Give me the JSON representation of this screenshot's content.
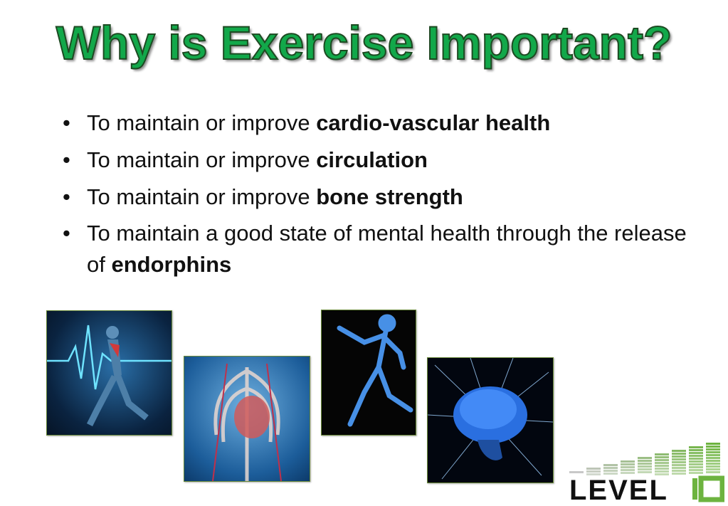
{
  "title": "Why is Exercise Important?",
  "bullets": [
    {
      "text": "To maintain or improve ",
      "bold": "cardio-vascular health"
    },
    {
      "text": "To maintain or improve ",
      "bold": "circulation"
    },
    {
      "text": "To maintain or improve ",
      "bold": "bone strength"
    },
    {
      "text": "To maintain a good state of mental health through the release of ",
      "bold": "endorphins"
    }
  ],
  "bullet_char": "•",
  "logo": {
    "text": "LEVEL 10",
    "colors": {
      "dark": "#111111",
      "accent": "#6db33f"
    }
  },
  "colors": {
    "title": "#12a84a",
    "title_outline": "#1d4a22"
  }
}
